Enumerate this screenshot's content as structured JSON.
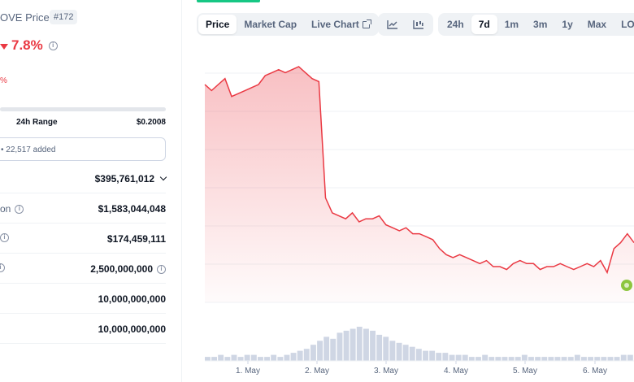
{
  "coin": {
    "name_partial": "OVE Price",
    "rank": "#172",
    "change_pct": "7.8%",
    "change_direction": "down",
    "btc_change_partial": "%"
  },
  "range": {
    "label": "24h Range",
    "high": "$0.2008"
  },
  "watchlist": {
    "text": "• 22,517 added"
  },
  "stats": [
    {
      "label": "",
      "value": "$395,761,012",
      "has_dropdown": true
    },
    {
      "label": "on",
      "value": "$1,583,044,048",
      "label_info": true
    },
    {
      "label": "",
      "value": "$174,459,111",
      "label_info": true
    },
    {
      "label": "",
      "value": "2,500,000,000",
      "label_info": true,
      "value_info": true
    },
    {
      "label": "",
      "value": "10,000,000,000"
    },
    {
      "label": "",
      "value": "10,000,000,000"
    }
  ],
  "chart_tabs": [
    "Price",
    "Market Cap",
    "Live Chart"
  ],
  "chart_type_icons": [
    "line-chart-icon",
    "candlestick-icon"
  ],
  "time_ranges": [
    "24h",
    "7d",
    "1m",
    "3m",
    "1y",
    "Max",
    "LOG"
  ],
  "active_chart_tab": "Price",
  "active_time_range": "7d",
  "colors": {
    "down": "#ea3943",
    "up": "#16c784",
    "text": "#0d1421",
    "muted": "#58667e"
  },
  "chart_data": {
    "type": "area",
    "x_tick_labels": [
      "1. May",
      "2. May",
      "3. May",
      "4. May",
      "5. May",
      "6. May"
    ],
    "series": [
      {
        "values": [
          0.233,
          0.231,
          0.233,
          0.235,
          0.229,
          0.23,
          0.231,
          0.232,
          0.233,
          0.236,
          0.237,
          0.238,
          0.237,
          0.238,
          0.239,
          0.237,
          0.235,
          0.234,
          0.195,
          0.19,
          0.189,
          0.188,
          0.19,
          0.187,
          0.188,
          0.188,
          0.189,
          0.186,
          0.185,
          0.184,
          0.185,
          0.183,
          0.183,
          0.182,
          0.181,
          0.178,
          0.176,
          0.175,
          0.176,
          0.175,
          0.174,
          0.173,
          0.174,
          0.172,
          0.172,
          0.171,
          0.173,
          0.174,
          0.173,
          0.173,
          0.171,
          0.172,
          0.172,
          0.173,
          0.172,
          0.171,
          0.172,
          0.173,
          0.172,
          0.174,
          0.17,
          0.178,
          0.18,
          0.183,
          0.18
        ]
      }
    ],
    "volume": [
      2,
      2,
      3,
      2,
      3,
      2,
      3,
      3,
      2,
      2,
      3,
      2,
      3,
      4,
      5,
      6,
      8,
      10,
      12,
      11,
      14,
      15,
      16,
      17,
      16,
      15,
      13,
      12,
      10,
      9,
      8,
      7,
      6,
      5,
      5,
      4,
      4,
      3,
      3,
      3,
      2,
      2,
      3,
      2,
      2,
      2,
      2,
      2,
      3,
      2,
      2,
      2,
      2,
      2,
      2,
      2,
      3,
      2,
      2,
      2,
      2,
      2,
      2,
      3,
      3
    ],
    "grid": true,
    "gradient_fill": true
  }
}
